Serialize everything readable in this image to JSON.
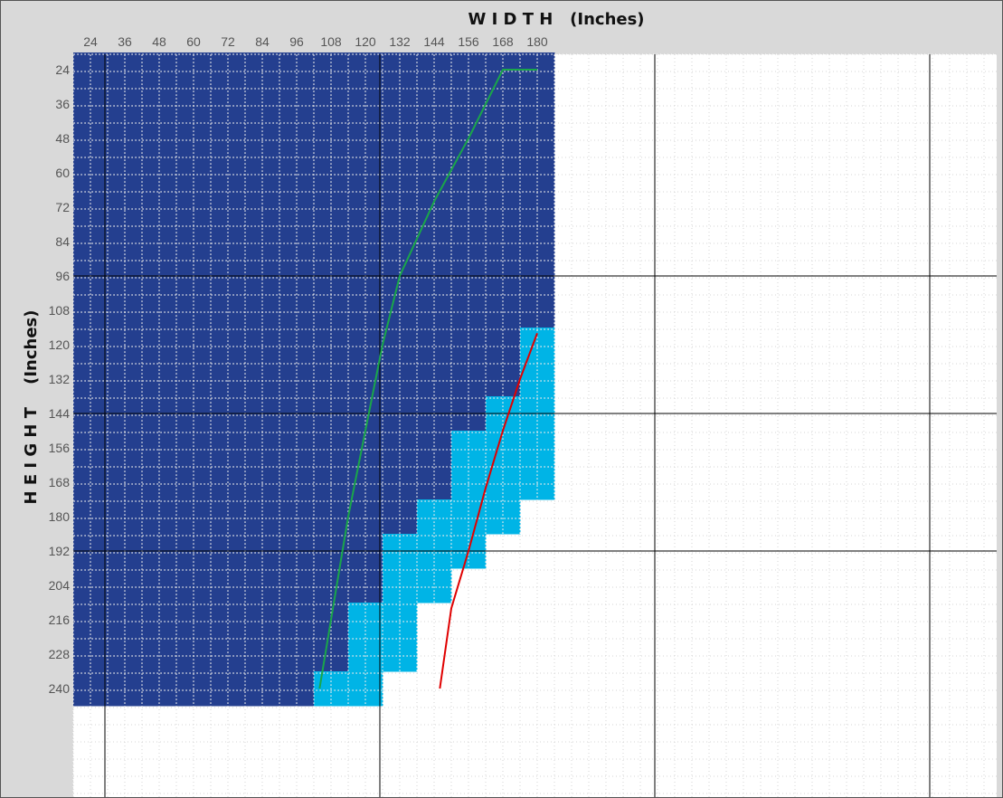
{
  "chart_data": {
    "type": "heatmap",
    "xlabel": "W I D T H   (Inches)",
    "ylabel": "H E I G H T    (Inches)",
    "x_ticks": [
      24,
      36,
      48,
      60,
      72,
      84,
      96,
      108,
      120,
      132,
      144,
      156,
      168,
      180
    ],
    "y_ticks": [
      24,
      36,
      48,
      60,
      72,
      84,
      96,
      108,
      120,
      132,
      144,
      156,
      168,
      180,
      192,
      204,
      216,
      228,
      240
    ],
    "x_range": [
      24,
      180
    ],
    "y_range": [
      24,
      240
    ],
    "cell_size": 12,
    "zones": {
      "dark_blue_max_width_by_height": [
        [
          24,
          180
        ],
        [
          36,
          180
        ],
        [
          48,
          180
        ],
        [
          60,
          180
        ],
        [
          72,
          180
        ],
        [
          84,
          180
        ],
        [
          96,
          180
        ],
        [
          108,
          180
        ],
        [
          120,
          168
        ],
        [
          132,
          168
        ],
        [
          144,
          156
        ],
        [
          156,
          144
        ],
        [
          168,
          144
        ],
        [
          180,
          132
        ],
        [
          192,
          120
        ],
        [
          204,
          120
        ],
        [
          216,
          108
        ],
        [
          228,
          108
        ],
        [
          240,
          96
        ]
      ],
      "light_blue_max_width_by_height": [
        [
          24,
          null
        ],
        [
          36,
          null
        ],
        [
          48,
          null
        ],
        [
          60,
          null
        ],
        [
          72,
          null
        ],
        [
          84,
          null
        ],
        [
          96,
          null
        ],
        [
          108,
          null
        ],
        [
          120,
          180
        ],
        [
          132,
          180
        ],
        [
          144,
          180
        ],
        [
          156,
          180
        ],
        [
          168,
          180
        ],
        [
          180,
          168
        ],
        [
          192,
          156
        ],
        [
          204,
          144
        ],
        [
          216,
          132
        ],
        [
          228,
          132
        ],
        [
          240,
          120
        ]
      ]
    },
    "series": [
      {
        "color": "#1aa64a",
        "points": [
          [
            180,
            24
          ],
          [
            168,
            24
          ],
          [
            156,
            48
          ],
          [
            144,
            70
          ],
          [
            132,
            96
          ],
          [
            126,
            120
          ],
          [
            120,
            150
          ],
          [
            114,
            180
          ],
          [
            110,
            204
          ],
          [
            104,
            240
          ]
        ]
      },
      {
        "color": "#e00000",
        "points": [
          [
            180,
            116
          ],
          [
            174,
            132
          ],
          [
            168,
            150
          ],
          [
            162,
            170
          ],
          [
            156,
            192
          ],
          [
            150,
            212
          ],
          [
            146,
            240
          ]
        ]
      }
    ],
    "colors": {
      "dark_blue": "#243f8f",
      "light_blue": "#00b4e6",
      "white": "#ffffff",
      "background": "#d9d9d9",
      "grid_minor": "#ffffff",
      "grid_minor_on_white": "#888888",
      "grid_major": "#000000"
    }
  }
}
